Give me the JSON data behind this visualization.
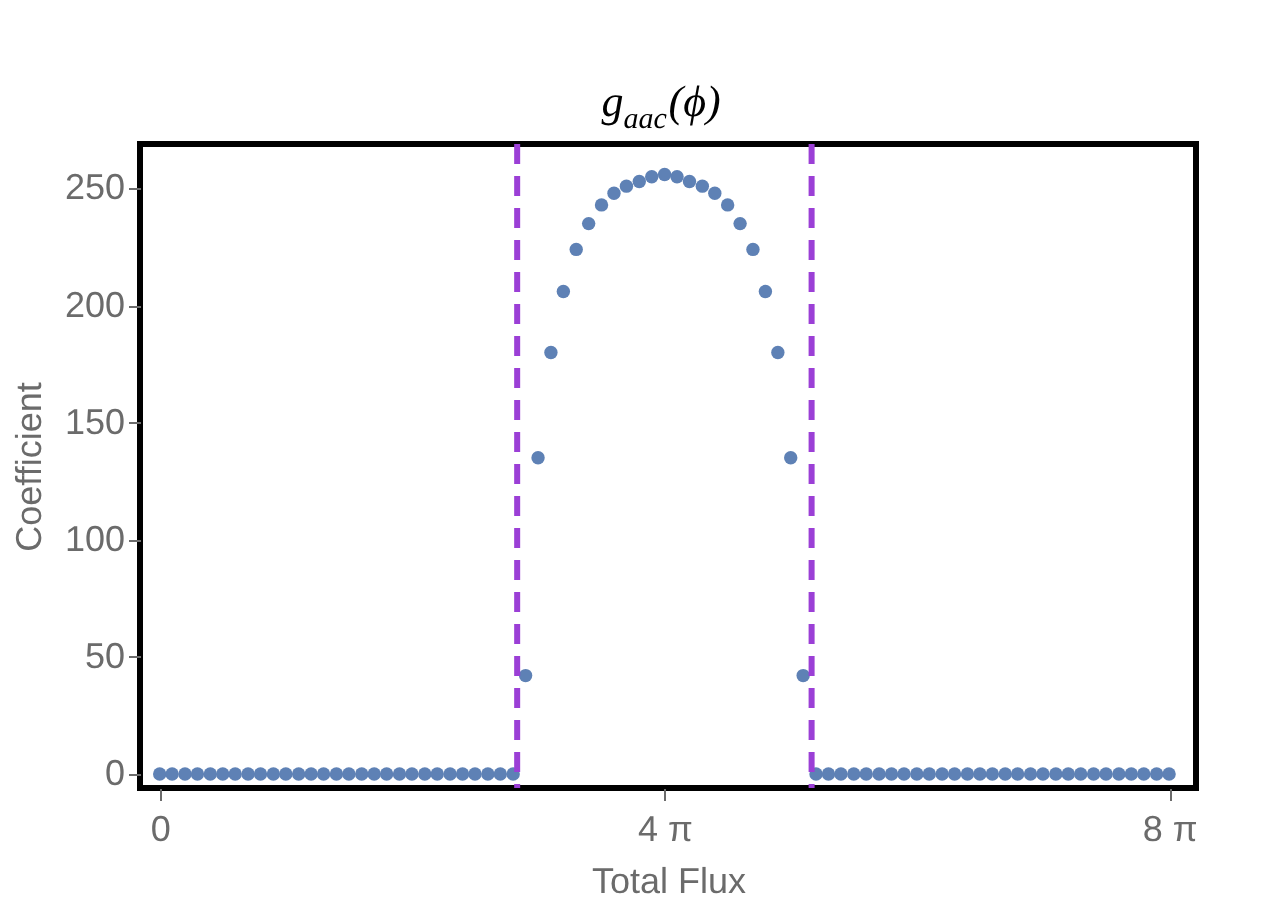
{
  "chart_data": {
    "type": "scatter",
    "title": "g$_{aac}$(ϕ)",
    "xlabel": "Total Flux",
    "ylabel": "Coefficient",
    "x": [
      0,
      0.31,
      0.63,
      0.94,
      1.26,
      1.57,
      1.88,
      2.2,
      2.51,
      2.83,
      3.14,
      3.46,
      3.77,
      4.08,
      4.4,
      4.71,
      5.03,
      5.34,
      5.65,
      5.97,
      6.28,
      6.6,
      6.91,
      7.23,
      7.54,
      7.85,
      8.17,
      8.48,
      8.8,
      9.11,
      9.42,
      9.74,
      10.05,
      10.37,
      10.68,
      11,
      11.31,
      11.62,
      11.94,
      12.25,
      12.57,
      12.88,
      13.19,
      13.51,
      13.82,
      14.14,
      14.45,
      14.77,
      15.08,
      15.39,
      15.71,
      16.02,
      16.34,
      16.65,
      16.96,
      17.28,
      17.59,
      17.91,
      18.22,
      18.53,
      18.85,
      19.16,
      19.48,
      19.79,
      20.11,
      20.42,
      20.73,
      21.05,
      21.36,
      21.68,
      21.99,
      22.31,
      22.62,
      22.93,
      23.25,
      23.56,
      23.88,
      24.19,
      24.5,
      24.82,
      25.13
    ],
    "series": [
      {
        "color": "#5e81b5",
        "values": [
          0,
          0,
          0,
          0,
          0,
          0,
          0,
          0,
          0,
          0,
          0,
          0,
          0,
          0,
          0,
          0,
          0,
          0,
          0,
          0,
          0,
          0,
          0,
          0,
          0,
          0,
          0,
          0,
          0,
          42,
          135,
          180,
          206,
          224,
          235,
          243,
          248,
          251,
          253,
          255,
          256,
          255,
          253,
          251,
          248,
          243,
          235,
          224,
          206,
          180,
          135,
          42,
          0,
          0,
          0,
          0,
          0,
          0,
          0,
          0,
          0,
          0,
          0,
          0,
          0,
          0,
          0,
          0,
          0,
          0,
          0,
          0,
          0,
          0,
          0,
          0,
          0,
          0,
          0,
          0,
          0
        ]
      }
    ],
    "xlim": [
      -0.49,
      25.8
    ],
    "ylim": [
      -6,
      269
    ],
    "xticks": [
      0,
      {
        "value": 12.566,
        "label": "4 π"
      },
      {
        "value": 25.133,
        "label": "8 π"
      }
    ],
    "yticks": [
      0,
      50,
      100,
      150,
      200,
      250
    ],
    "ref_lines": [
      {
        "axis": "x",
        "value": 8.9,
        "color": "#9b3fd6",
        "line_style": "dashed"
      },
      {
        "axis": "x",
        "value": 16.23,
        "color": "#9b3fd6",
        "line_style": "dashed"
      }
    ],
    "grid": false,
    "marker": "circle"
  }
}
